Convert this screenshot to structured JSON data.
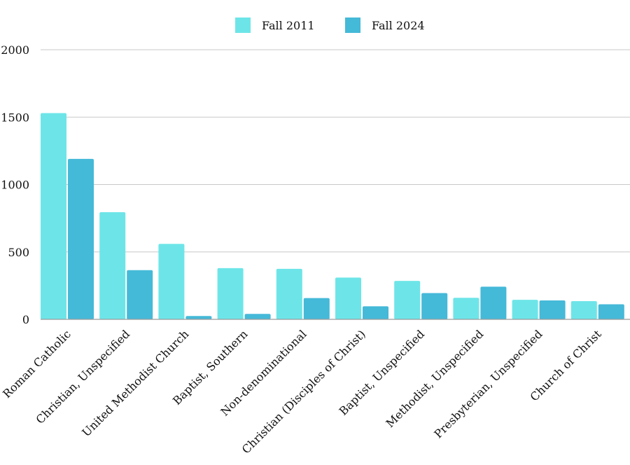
{
  "chart_data": {
    "type": "bar",
    "title": "",
    "xlabel": "",
    "ylabel": "",
    "categories": [
      "Roman Catholic",
      "Christian, Unspecified",
      "United Methodist Church",
      "Baptist, Southern",
      "Non-denominational",
      "Christian (Disciples of Christ)",
      "Baptist, Unspecified",
      "Methodist, Unspecified",
      "Presbyterian, Unspecified",
      "Church of Christ"
    ],
    "series": [
      {
        "name": "Fall 2011",
        "color": "#6de5e8",
        "values": [
          1530,
          795,
          560,
          380,
          375,
          310,
          285,
          160,
          145,
          135
        ]
      },
      {
        "name": "Fall 2024",
        "color": "#45b9d8",
        "values": [
          1190,
          365,
          25,
          40,
          158,
          97,
          195,
          242,
          140,
          112
        ]
      }
    ],
    "ylim": [
      0,
      2000
    ],
    "yticks": [
      0,
      500,
      1000,
      1500,
      2000
    ],
    "ytick_labels": [
      "0",
      "500",
      "1000",
      "1500",
      "2000"
    ],
    "grid": true,
    "legend_position": "top-center"
  }
}
